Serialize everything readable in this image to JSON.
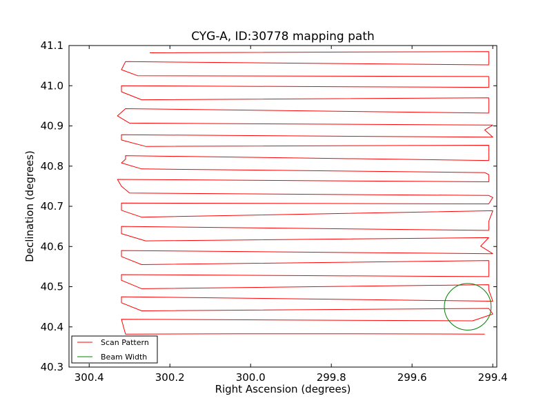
{
  "chart_data": {
    "type": "line",
    "title": "CYG-A, ID:30778 mapping path",
    "xlabel": "Right Ascension (degrees)",
    "ylabel": "Declination (degrees)",
    "xlim": [
      300.45,
      299.39
    ],
    "ylim": [
      40.3,
      41.1
    ],
    "x_inverted": true,
    "xticks": [
      {
        "value": 300.4,
        "label": "300.4"
      },
      {
        "value": 300.2,
        "label": "300.2"
      },
      {
        "value": 300.0,
        "label": "300.0"
      },
      {
        "value": 299.8,
        "label": "299.8"
      },
      {
        "value": 299.6,
        "label": "299.6"
      },
      {
        "value": 299.4,
        "label": "299.4"
      }
    ],
    "yticks": [
      {
        "value": 40.3,
        "label": "40.3"
      },
      {
        "value": 40.4,
        "label": "40.4"
      },
      {
        "value": 40.5,
        "label": "40.5"
      },
      {
        "value": 40.6,
        "label": "40.6"
      },
      {
        "value": 40.7,
        "label": "40.7"
      },
      {
        "value": 40.8,
        "label": "40.8"
      },
      {
        "value": 40.9,
        "label": "40.9"
      },
      {
        "value": 41.0,
        "label": "41.0"
      },
      {
        "value": 41.1,
        "label": "41.1"
      }
    ],
    "grid": false,
    "legend_position": "lower-left",
    "series": [
      {
        "name": "Scan Pattern",
        "color": "#ff0000",
        "points": [
          [
            299.42,
            40.382
          ],
          [
            299.75,
            40.383
          ],
          [
            300.03,
            40.383
          ],
          [
            300.31,
            40.382
          ],
          [
            300.315,
            40.4
          ],
          [
            300.32,
            40.419
          ],
          [
            299.45,
            40.415
          ],
          [
            299.4,
            40.432
          ],
          [
            299.41,
            40.446
          ],
          [
            300.27,
            40.44
          ],
          [
            300.32,
            40.46
          ],
          [
            300.32,
            40.475
          ],
          [
            299.4,
            40.464
          ],
          [
            299.41,
            40.492
          ],
          [
            299.41,
            40.505
          ],
          [
            300.27,
            40.495
          ],
          [
            300.32,
            40.516
          ],
          [
            300.32,
            40.53
          ],
          [
            299.41,
            40.525
          ],
          [
            299.41,
            40.546
          ],
          [
            299.41,
            40.565
          ],
          [
            300.27,
            40.555
          ],
          [
            300.32,
            40.575
          ],
          [
            300.32,
            40.59
          ],
          [
            299.4,
            40.582
          ],
          [
            299.43,
            40.601
          ],
          [
            299.41,
            40.622
          ],
          [
            300.26,
            40.614
          ],
          [
            300.32,
            40.632
          ],
          [
            300.32,
            40.65
          ],
          [
            299.41,
            40.64
          ],
          [
            299.41,
            40.662
          ],
          [
            299.4,
            40.689
          ],
          [
            300.27,
            40.673
          ],
          [
            300.32,
            40.69
          ],
          [
            300.32,
            40.708
          ],
          [
            299.41,
            40.706
          ],
          [
            299.4,
            40.722
          ],
          [
            299.41,
            40.727
          ],
          [
            300.3,
            40.733
          ],
          [
            300.32,
            40.75
          ],
          [
            300.33,
            40.767
          ],
          [
            299.41,
            40.761
          ],
          [
            299.41,
            40.779
          ],
          [
            299.42,
            40.784
          ],
          [
            300.27,
            40.793
          ],
          [
            300.32,
            40.808
          ],
          [
            300.31,
            40.817
          ],
          [
            300.31,
            40.826
          ],
          [
            299.41,
            40.814
          ],
          [
            299.41,
            40.837
          ],
          [
            299.41,
            40.852
          ],
          [
            300.26,
            40.849
          ],
          [
            300.32,
            40.865
          ],
          [
            300.32,
            40.878
          ],
          [
            299.4,
            40.872
          ],
          [
            299.42,
            40.89
          ],
          [
            299.4,
            40.902
          ],
          [
            300.3,
            40.907
          ],
          [
            300.33,
            40.925
          ],
          [
            300.31,
            40.943
          ],
          [
            299.41,
            40.932
          ],
          [
            299.41,
            40.955
          ],
          [
            299.41,
            40.97
          ],
          [
            300.27,
            40.965
          ],
          [
            300.32,
            40.985
          ],
          [
            300.32,
            41.0
          ],
          [
            299.41,
            40.996
          ],
          [
            299.41,
            41.013
          ],
          [
            299.41,
            41.023
          ],
          [
            300.28,
            41.025
          ],
          [
            300.32,
            41.04
          ],
          [
            300.31,
            41.06
          ],
          [
            299.41,
            41.052
          ],
          [
            299.41,
            41.076
          ],
          [
            299.41,
            41.085
          ],
          [
            300.25,
            41.082
          ]
        ]
      },
      {
        "name": "Beam Width",
        "color": "#008000",
        "shape": "circle",
        "center": [
          299.462,
          40.45
        ],
        "radius_deg": 0.058
      }
    ]
  },
  "legend": {
    "items": [
      {
        "label": "Scan Pattern",
        "color": "#ff0000"
      },
      {
        "label": "Beam Width",
        "color": "#008000"
      }
    ]
  }
}
